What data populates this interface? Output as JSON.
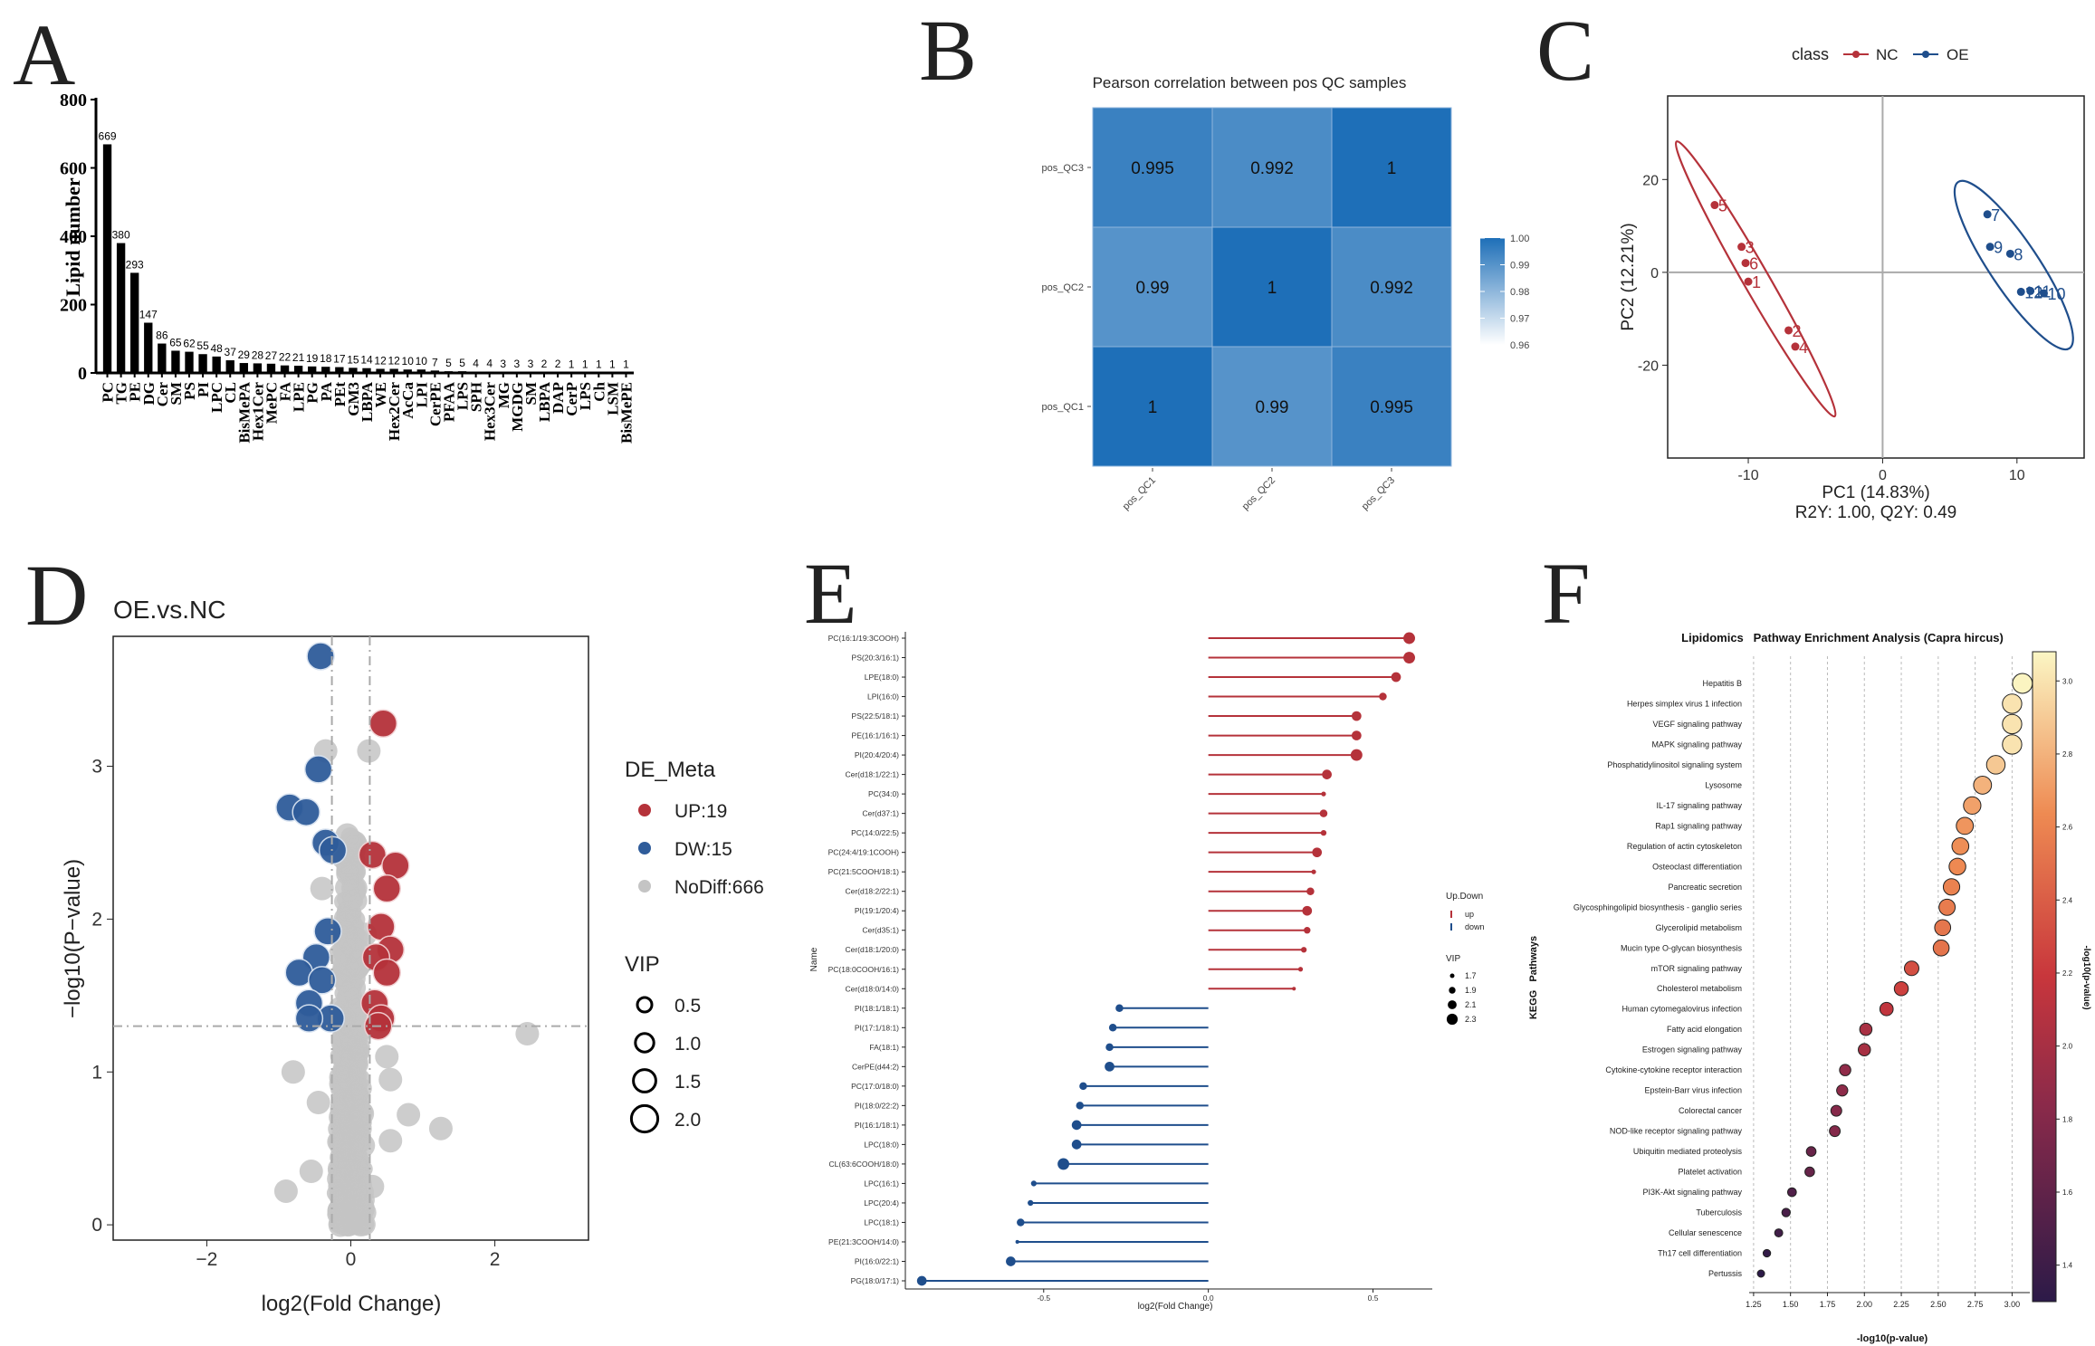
{
  "panel_letters": {
    "a": "A",
    "b": "B",
    "c": "C",
    "d": "D",
    "e": "E",
    "f": "F"
  },
  "chart_data": [
    {
      "panel": "A",
      "type": "bar",
      "title": "",
      "xlabel": "",
      "ylabel": "Lipid number",
      "ylim": [
        0,
        800
      ],
      "yticks": [
        0,
        200,
        400,
        600,
        800
      ],
      "categories": [
        "PC",
        "TG",
        "PE",
        "DG",
        "Cer",
        "SM",
        "PS",
        "PI",
        "LPC",
        "CL",
        "BisMePA",
        "Hex1Cer",
        "MePC",
        "FA",
        "LPE",
        "PG",
        "PA",
        "PEt",
        "GM3",
        "LBPA",
        "WE",
        "Hex2Cer",
        "AcCa",
        "LPI",
        "CerPE",
        "PFAA",
        "LPS",
        "SPH",
        "Hex3Cer",
        "MG",
        "MGDG",
        "SM",
        "LBPA",
        "DAP",
        "CerP",
        "LPS",
        "Ch",
        "LSM",
        "BisMePE"
      ],
      "values": [
        669,
        380,
        293,
        147,
        86,
        65,
        62,
        55,
        48,
        37,
        29,
        28,
        27,
        22,
        21,
        19,
        18,
        17,
        15,
        14,
        12,
        12,
        10,
        10,
        7,
        5,
        5,
        4,
        4,
        3,
        3,
        3,
        2,
        2,
        1,
        1,
        1,
        1,
        1
      ]
    },
    {
      "panel": "B",
      "type": "heatmap",
      "title": "Pearson correlation between pos QC samples",
      "rows": [
        "pos_QC3",
        "pos_QC2",
        "pos_QC1"
      ],
      "cols": [
        "pos_QC1",
        "pos_QC2",
        "pos_QC3"
      ],
      "values": [
        [
          0.995,
          0.992,
          1
        ],
        [
          0.99,
          1,
          0.992
        ],
        [
          1,
          0.99,
          0.995
        ]
      ],
      "cell_labels": [
        [
          "0.995",
          "0.992",
          "1"
        ],
        [
          "0.99",
          "1",
          "0.992"
        ],
        [
          "1",
          "0.99",
          "0.995"
        ]
      ],
      "colorbar_ticks": [
        "1.00",
        "0.99",
        "0.98",
        "0.97",
        "0.96"
      ],
      "colorbar_range": [
        0.96,
        1.0
      ],
      "colors": {
        "low": "#ffffff",
        "high": "#1e6fb8"
      }
    },
    {
      "panel": "C",
      "type": "scatter",
      "xlabel": "PC1 (14.83%)",
      "ylabel": "PC2 (12.21%)",
      "subtitle": "R2Y: 1.00, Q2Y: 0.49",
      "legend_title": "class",
      "xlim": [
        -16,
        15
      ],
      "ylim": [
        -40,
        38
      ],
      "xticks": [
        -10,
        0,
        10
      ],
      "yticks": [
        -20,
        0,
        20
      ],
      "series": [
        {
          "name": "NC",
          "color": "#b5323a",
          "points": [
            {
              "x": -12.5,
              "y": 14.5,
              "label": "5"
            },
            {
              "x": -10.5,
              "y": 5.5,
              "label": "3"
            },
            {
              "x": -10.2,
              "y": 2,
              "label": "6"
            },
            {
              "x": -10,
              "y": -2,
              "label": "1"
            },
            {
              "x": -7,
              "y": -12.5,
              "label": "2"
            },
            {
              "x": -6.5,
              "y": -16,
              "label": "4"
            }
          ]
        },
        {
          "name": "OE",
          "color": "#1f4e8c",
          "points": [
            {
              "x": 7.8,
              "y": 12.5,
              "label": "7"
            },
            {
              "x": 8,
              "y": 5.5,
              "label": "9"
            },
            {
              "x": 9.5,
              "y": 4,
              "label": "8"
            },
            {
              "x": 10.3,
              "y": -4.2,
              "label": "12"
            },
            {
              "x": 11,
              "y": -4,
              "label": "11"
            },
            {
              "x": 12,
              "y": -4.5,
              "label": "10"
            }
          ]
        }
      ]
    },
    {
      "panel": "D",
      "type": "scatter",
      "title": "OE.vs.NC",
      "xlabel": "log2(Fold Change)",
      "ylabel": "−log10(P−value)",
      "xlim": [
        -3.3,
        3.3
      ],
      "ylim": [
        -0.1,
        3.85
      ],
      "xticks": [
        -2,
        0,
        2
      ],
      "xtick_labels": [
        "−2",
        "0",
        "2"
      ],
      "yticks": [
        0,
        1,
        2,
        3
      ],
      "thresholds": {
        "log2fc": [
          -0.263,
          0.263
        ],
        "neglog10p": 1.3
      },
      "legend_title": "DE_Meta",
      "legend_entries": [
        "UP:19",
        "DW:15",
        "NoDiff:666"
      ],
      "vip_title": "VIP",
      "vip_entries": [
        "0.5",
        "1.0",
        "1.5",
        "2.0"
      ],
      "colors": {
        "up": "#b5323a",
        "down": "#2f5c9a",
        "nodiff": "#c4c4c4"
      },
      "up_points": [
        [
          0.45,
          3.28
        ],
        [
          0.3,
          2.42
        ],
        [
          0.62,
          2.35
        ],
        [
          0.5,
          2.2
        ],
        [
          0.42,
          1.95
        ],
        [
          0.55,
          1.8
        ],
        [
          0.35,
          1.75
        ],
        [
          0.5,
          1.65
        ],
        [
          0.33,
          1.45
        ],
        [
          0.42,
          1.35
        ],
        [
          0.38,
          1.3
        ]
      ],
      "down_points": [
        [
          -0.42,
          3.72
        ],
        [
          -0.45,
          2.98
        ],
        [
          -0.85,
          2.73
        ],
        [
          -0.62,
          2.7
        ],
        [
          -0.35,
          2.5
        ],
        [
          -0.25,
          2.45
        ],
        [
          -0.32,
          1.92
        ],
        [
          -0.48,
          1.75
        ],
        [
          -0.72,
          1.65
        ],
        [
          -0.4,
          1.6
        ],
        [
          -0.58,
          1.45
        ],
        [
          -0.28,
          1.35
        ],
        [
          -0.58,
          1.35
        ]
      ],
      "nodiff_points": [
        [
          2.45,
          1.25
        ],
        [
          -0.35,
          3.1
        ],
        [
          0.25,
          3.1
        ],
        [
          -0.05,
          2.55
        ],
        [
          -0.4,
          2.2
        ],
        [
          0.2,
          1.9
        ],
        [
          1.25,
          0.63
        ],
        [
          0.8,
          0.72
        ],
        [
          -0.8,
          1.0
        ],
        [
          0.55,
          0.95
        ],
        [
          -0.55,
          0.35
        ],
        [
          0.55,
          0.55
        ],
        [
          -0.9,
          0.22
        ],
        [
          0.3,
          0.25
        ],
        [
          -0.45,
          0.8
        ],
        [
          0.5,
          1.1
        ]
      ]
    },
    {
      "panel": "E",
      "type": "lollipop",
      "xlabel": "log2(Fold Change)",
      "ylabel": "Name",
      "xlim": [
        -0.92,
        0.68
      ],
      "xticks": [
        -0.5,
        0.0,
        0.5
      ],
      "xtick_labels": [
        "-0.5",
        "0.0",
        "0.5"
      ],
      "legend_title": "Up.Down",
      "legend_entries": [
        "up",
        "down"
      ],
      "vip_title": "VIP",
      "vip_entries": [
        "1.7",
        "1.9",
        "2.1",
        "2.3"
      ],
      "colors": {
        "up": "#b5323a",
        "down": "#1f4e8c"
      },
      "items": [
        {
          "name": "PC(16:1/19:3COOH)",
          "value": 0.61,
          "vip": 2.3
        },
        {
          "name": "PS(20:3/16:1)",
          "value": 0.61,
          "vip": 2.3
        },
        {
          "name": "LPE(18:0)",
          "value": 0.57,
          "vip": 2.1
        },
        {
          "name": "LPI(16:0)",
          "value": 0.53,
          "vip": 1.9
        },
        {
          "name": "PS(22:5/18:1)",
          "value": 0.45,
          "vip": 2.1
        },
        {
          "name": "PE(16:1/16:1)",
          "value": 0.45,
          "vip": 2.1
        },
        {
          "name": "PI(20:4/20:4)",
          "value": 0.45,
          "vip": 2.3
        },
        {
          "name": "Cer(d18:1/22:1)",
          "value": 0.36,
          "vip": 2.1
        },
        {
          "name": "PC(34:0)",
          "value": 0.35,
          "vip": 1.6
        },
        {
          "name": "Cer(d37:1)",
          "value": 0.35,
          "vip": 1.9
        },
        {
          "name": "PC(14:0/22:5)",
          "value": 0.35,
          "vip": 1.7
        },
        {
          "name": "PC(24:4/19:1COOH)",
          "value": 0.33,
          "vip": 2.1
        },
        {
          "name": "PC(21:5COOH/18:1)",
          "value": 0.32,
          "vip": 1.6
        },
        {
          "name": "Cer(d18:2/22:1)",
          "value": 0.31,
          "vip": 1.9
        },
        {
          "name": "PI(19:1/20:4)",
          "value": 0.3,
          "vip": 2.1
        },
        {
          "name": "Cer(d35:1)",
          "value": 0.3,
          "vip": 1.8
        },
        {
          "name": "Cer(d18:1/20:0)",
          "value": 0.29,
          "vip": 1.7
        },
        {
          "name": "PC(18:0COOH/16:1)",
          "value": 0.28,
          "vip": 1.6
        },
        {
          "name": "Cer(d18:0/14:0)",
          "value": 0.26,
          "vip": 1.5
        },
        {
          "name": "PI(18:1/18:1)",
          "value": -0.27,
          "vip": 1.9
        },
        {
          "name": "PI(17:1/18:1)",
          "value": -0.29,
          "vip": 1.9
        },
        {
          "name": "FA(18:1)",
          "value": -0.3,
          "vip": 1.9
        },
        {
          "name": "CerPE(d44:2)",
          "value": -0.3,
          "vip": 2.1
        },
        {
          "name": "PC(17:0/18:0)",
          "value": -0.38,
          "vip": 1.9
        },
        {
          "name": "PI(18:0/22:2)",
          "value": -0.39,
          "vip": 1.9
        },
        {
          "name": "PI(16:1/18:1)",
          "value": -0.4,
          "vip": 2.1
        },
        {
          "name": "LPC(18:0)",
          "value": -0.4,
          "vip": 2.1
        },
        {
          "name": "CL(63:6COOH/18:0)",
          "value": -0.44,
          "vip": 2.3
        },
        {
          "name": "LPC(16:1)",
          "value": -0.53,
          "vip": 1.7
        },
        {
          "name": "LPC(20:4)",
          "value": -0.54,
          "vip": 1.7
        },
        {
          "name": "LPC(18:1)",
          "value": -0.57,
          "vip": 1.9
        },
        {
          "name": "PE(21:3COOH/14:0)",
          "value": -0.58,
          "vip": 1.5
        },
        {
          "name": "PI(16:0/22:1)",
          "value": -0.6,
          "vip": 2.1
        },
        {
          "name": "PG(18:0/17:1)",
          "value": -0.87,
          "vip": 2.1
        }
      ]
    },
    {
      "panel": "F",
      "type": "scatter",
      "title": "Lipidomics   Pathway Enrichment Analysis (Capra hircus)",
      "xlabel": "-log10(p-value)",
      "ylabel": "KEGG   Pathways",
      "xlim": [
        1.22,
        3.12
      ],
      "xticks": [
        1.25,
        1.5,
        1.75,
        2.0,
        2.25,
        2.5,
        2.75,
        3.0
      ],
      "xtick_labels": [
        "1.25",
        "1.50",
        "1.75",
        "2.00",
        "2.25",
        "2.50",
        "2.75",
        "3.00"
      ],
      "colorbar_title": "-log10(p-value)",
      "colorbar_range": [
        1.3,
        3.08
      ],
      "colorbar_ticks": [
        "3.0",
        "2.8",
        "2.6",
        "2.4",
        "2.2",
        "2.0",
        "1.8",
        "1.6",
        "1.4"
      ],
      "pathways": [
        {
          "name": "Hepatitis B",
          "value": 3.07
        },
        {
          "name": "Herpes simplex virus 1 infection",
          "value": 3.0
        },
        {
          "name": "VEGF signaling pathway",
          "value": 3.0
        },
        {
          "name": "MAPK signaling pathway",
          "value": 3.0
        },
        {
          "name": "Phosphatidylinositol signaling system",
          "value": 2.89
        },
        {
          "name": "Lysosome",
          "value": 2.8
        },
        {
          "name": "IL-17 signaling pathway",
          "value": 2.73
        },
        {
          "name": "Rap1 signaling pathway",
          "value": 2.68
        },
        {
          "name": "Regulation of actin cytoskeleton",
          "value": 2.65
        },
        {
          "name": "Osteoclast differentiation",
          "value": 2.63
        },
        {
          "name": "Pancreatic secretion",
          "value": 2.59
        },
        {
          "name": "Glycosphingolipid biosynthesis - ganglio series",
          "value": 2.56
        },
        {
          "name": "Glycerolipid metabolism",
          "value": 2.53
        },
        {
          "name": "Mucin type O-glycan biosynthesis",
          "value": 2.52
        },
        {
          "name": "mTOR signaling pathway",
          "value": 2.32
        },
        {
          "name": "Cholesterol metabolism",
          "value": 2.25
        },
        {
          "name": "Human cytomegalovirus infection",
          "value": 2.15
        },
        {
          "name": "Fatty acid elongation",
          "value": 2.01
        },
        {
          "name": "Estrogen signaling pathway",
          "value": 2.0
        },
        {
          "name": "Cytokine-cytokine receptor interaction",
          "value": 1.87
        },
        {
          "name": "Epstein-Barr virus infection",
          "value": 1.85
        },
        {
          "name": "Colorectal cancer",
          "value": 1.81
        },
        {
          "name": "NOD-like receptor signaling pathway",
          "value": 1.8
        },
        {
          "name": "Ubiquitin mediated proteolysis",
          "value": 1.64
        },
        {
          "name": "Platelet activation",
          "value": 1.63
        },
        {
          "name": "PI3K-Akt signaling pathway",
          "value": 1.51
        },
        {
          "name": "Tuberculosis",
          "value": 1.47
        },
        {
          "name": "Cellular senescence",
          "value": 1.42
        },
        {
          "name": "Th17 cell differentiation",
          "value": 1.34
        },
        {
          "name": "Pertussis",
          "value": 1.3
        }
      ]
    }
  ]
}
